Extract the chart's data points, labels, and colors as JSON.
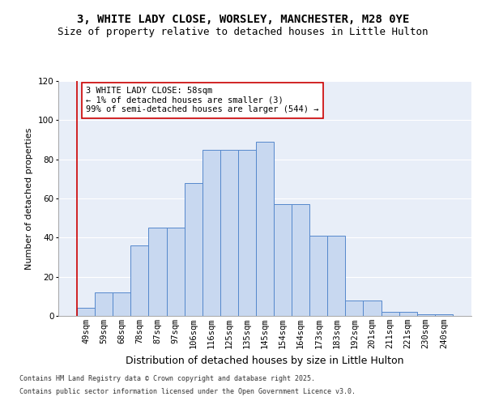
{
  "title1": "3, WHITE LADY CLOSE, WORSLEY, MANCHESTER, M28 0YE",
  "title2": "Size of property relative to detached houses in Little Hulton",
  "xlabel": "Distribution of detached houses by size in Little Hulton",
  "ylabel": "Number of detached properties",
  "categories": [
    "49sqm",
    "59sqm",
    "68sqm",
    "78sqm",
    "87sqm",
    "97sqm",
    "106sqm",
    "116sqm",
    "125sqm",
    "135sqm",
    "145sqm",
    "154sqm",
    "164sqm",
    "173sqm",
    "183sqm",
    "192sqm",
    "201sqm",
    "211sqm",
    "221sqm",
    "230sqm",
    "240sqm"
  ],
  "values": [
    4,
    12,
    12,
    36,
    45,
    45,
    68,
    85,
    85,
    85,
    89,
    57,
    57,
    41,
    41,
    8,
    8,
    2,
    2,
    1,
    1
  ],
  "bar_color": "#c8d8f0",
  "bar_edge_color": "#5588cc",
  "highlight_color": "#cc0000",
  "annotation_text": "3 WHITE LADY CLOSE: 58sqm\n← 1% of detached houses are smaller (3)\n99% of semi-detached houses are larger (544) →",
  "annotation_box_color": "#ffffff",
  "annotation_box_edge": "#cc0000",
  "ylim": [
    0,
    120
  ],
  "yticks": [
    0,
    20,
    40,
    60,
    80,
    100,
    120
  ],
  "background_color": "#e8eef8",
  "footer1": "Contains HM Land Registry data © Crown copyright and database right 2025.",
  "footer2": "Contains public sector information licensed under the Open Government Licence v3.0.",
  "title_fontsize": 10,
  "subtitle_fontsize": 9,
  "xlabel_fontsize": 9,
  "ylabel_fontsize": 8,
  "tick_fontsize": 7.5,
  "annotation_fontsize": 7.5,
  "footer_fontsize": 6
}
